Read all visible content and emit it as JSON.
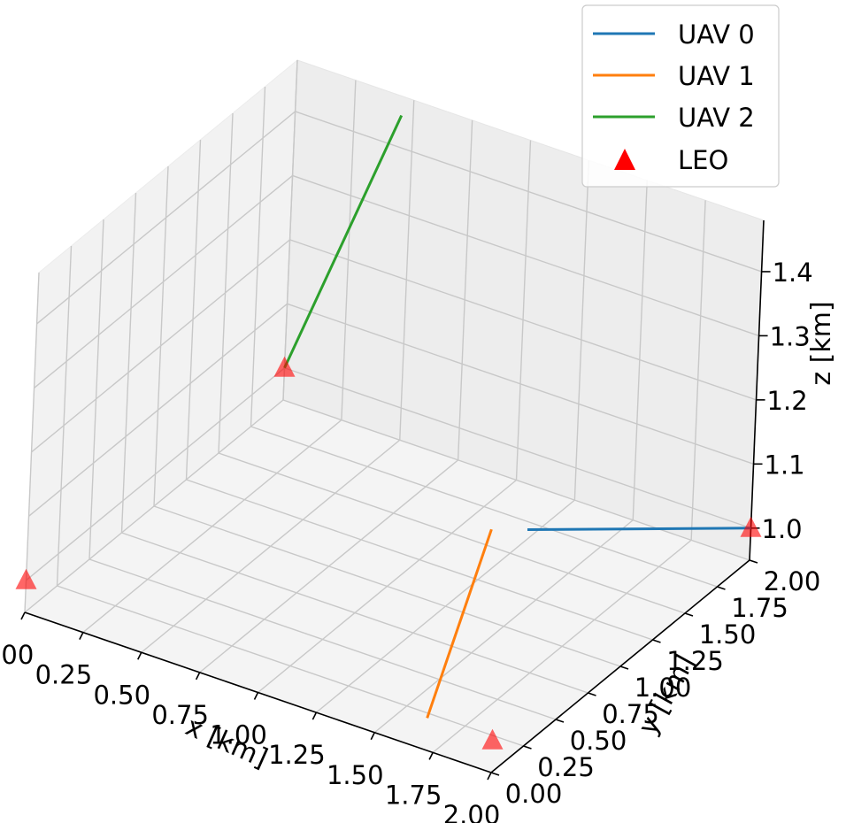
{
  "chart_data": {
    "type": "line3d",
    "title": "",
    "xlabel": "x [km]",
    "ylabel": "y [km]",
    "zlabel": "z [km]",
    "xlim": [
      0.0,
      2.0
    ],
    "ylim": [
      0.0,
      2.0
    ],
    "zlim": [
      0.95,
      1.48
    ],
    "grid": true,
    "legend_position": "top-right",
    "x_ticks": [
      "0.00",
      "0.25",
      "0.50",
      "0.75",
      "1.00",
      "1.25",
      "1.50",
      "1.75",
      "2.00"
    ],
    "y_ticks": [
      "0.00",
      "0.25",
      "0.50",
      "0.75",
      "1.00",
      "1.25",
      "1.50",
      "1.75",
      "2.00"
    ],
    "z_ticks": [
      "1.0",
      "1.1",
      "1.2",
      "1.3",
      "1.4"
    ],
    "series": [
      {
        "name": "UAV 0",
        "type": "line",
        "color": "#1f77b4",
        "points": [
          {
            "x": 1.33,
            "y": 1.48,
            "z": 1.0
          },
          {
            "x": 2.0,
            "y": 2.0,
            "z": 1.0
          }
        ]
      },
      {
        "name": "UAV 1",
        "type": "line",
        "color": "#ff7f0e",
        "points": [
          {
            "x": 1.72,
            "y": 0.0,
            "z": 1.0
          },
          {
            "x": 1.22,
            "y": 1.4,
            "z": 1.0
          }
        ]
      },
      {
        "name": "UAV 2",
        "type": "line",
        "color": "#2ca02c",
        "points": [
          {
            "x": 0.0,
            "y": 2.0,
            "z": 1.0
          },
          {
            "x": 0.45,
            "y": 2.0,
            "z": 1.45
          }
        ]
      },
      {
        "name": "LEO",
        "type": "scatter",
        "marker": "triangle",
        "color": "#ff0000",
        "points": [
          {
            "x": 0.0,
            "y": 0.0,
            "z": 1.0
          },
          {
            "x": 2.0,
            "y": 0.0,
            "z": 1.0
          },
          {
            "x": 0.0,
            "y": 2.0,
            "z": 1.0
          },
          {
            "x": 2.0,
            "y": 2.0,
            "z": 1.0
          }
        ]
      }
    ]
  }
}
